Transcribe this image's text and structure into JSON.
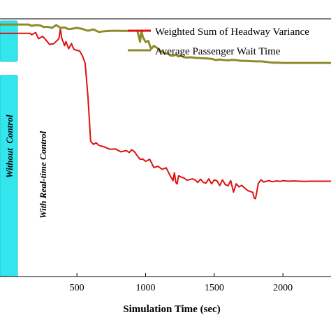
{
  "chart_data": {
    "type": "line",
    "xlabel": "Simulation Time (sec)",
    "ylabel": "",
    "xlim": [
      -60,
      2350
    ],
    "ylim": [
      0,
      100
    ],
    "x_ticks": [
      500,
      1000,
      1500,
      2000
    ],
    "grid": false,
    "legend_position": "top-right",
    "annotations": {
      "without_control": "Without  Control",
      "with_control": "With Real-time Control"
    },
    "colors": {
      "red": "#dd1111",
      "olive": "#8c8c2a",
      "cyan_box": "#33e6ee",
      "cyan_box_border": "#22c4cc"
    },
    "series": [
      {
        "name": "Weighted Sum of Headway Variance",
        "color": "#dd1111",
        "x": [
          -60,
          160,
          170,
          200,
          220,
          250,
          270,
          300,
          330,
          360,
          370,
          380,
          390,
          400,
          410,
          420,
          440,
          460,
          470,
          480,
          500,
          520,
          540,
          560,
          580,
          600,
          620,
          640,
          660,
          700,
          740,
          780,
          820,
          860,
          880,
          900,
          920,
          940,
          960,
          980,
          1000,
          1030,
          1060,
          1090,
          1120,
          1150,
          1180,
          1200,
          1210,
          1220,
          1230,
          1240,
          1260,
          1280,
          1300,
          1320,
          1340,
          1360,
          1380,
          1400,
          1420,
          1440,
          1460,
          1480,
          1500,
          1520,
          1540,
          1560,
          1580,
          1600,
          1620,
          1640,
          1660,
          1680,
          1700,
          1720,
          1740,
          1760,
          1780,
          1790,
          1800,
          1810,
          1820,
          1840,
          1860,
          1880,
          1900,
          1920,
          1940,
          1960,
          1980,
          2000,
          2040,
          2080,
          2120,
          2160,
          2200,
          2240,
          2280,
          2350
        ],
        "values": [
          94.4,
          94.4,
          93.8,
          94.7,
          92.3,
          93.2,
          92.1,
          90.1,
          90.3,
          91.8,
          92.6,
          96.1,
          92.4,
          91.0,
          89.6,
          91.2,
          88.4,
          90.4,
          89.1,
          88.1,
          87.8,
          87.5,
          85.7,
          82.8,
          70.0,
          52.5,
          51.3,
          51.9,
          50.9,
          50.3,
          49.4,
          49.5,
          48.4,
          48.9,
          48.1,
          49.2,
          48.4,
          46.8,
          45.5,
          45.6,
          44.7,
          45.5,
          42.3,
          42.8,
          41.6,
          42.2,
          39.0,
          37.2,
          40.3,
          36.5,
          35.9,
          39.1,
          38.6,
          38.2,
          37.4,
          37.6,
          37.9,
          37.5,
          36.5,
          37.8,
          36.5,
          36.3,
          37.9,
          36.0,
          37.5,
          37.1,
          35.3,
          37.5,
          35.7,
          35.2,
          37.2,
          32.8,
          36.0,
          34.8,
          35.4,
          34.4,
          33.5,
          33.0,
          32.7,
          30.5,
          30.2,
          32.9,
          36.1,
          37.5,
          36.7,
          37.0,
          37.2,
          36.8,
          37.0,
          37.1,
          36.9,
          37.2,
          37.0,
          37.1,
          37.0,
          36.9,
          37.0,
          37.0,
          37.0,
          37.0
        ]
      },
      {
        "name": "Average Passenger Wait Time",
        "color": "#8c8c2a",
        "x": [
          -60,
          150,
          170,
          200,
          230,
          260,
          290,
          320,
          350,
          380,
          410,
          440,
          470,
          500,
          540,
          580,
          620,
          660,
          700,
          740,
          780,
          820,
          860,
          900,
          940,
          960,
          970,
          980,
          1000,
          1020,
          1040,
          1060,
          1080,
          1100,
          1120,
          1140,
          1160,
          1180,
          1200,
          1220,
          1240,
          1260,
          1280,
          1300,
          1330,
          1360,
          1390,
          1420,
          1450,
          1480,
          1510,
          1540,
          1570,
          1600,
          1630,
          1660,
          1690,
          1720,
          1760,
          1800,
          1840,
          1880,
          1920,
          1960,
          2000,
          2040,
          2080,
          2120,
          2160,
          2200,
          2240,
          2280,
          2350
        ],
        "values": [
          97.8,
          97.8,
          97.3,
          97.6,
          97.5,
          96.8,
          96.9,
          96.5,
          97.6,
          96.5,
          96.7,
          96.0,
          96.2,
          96.5,
          96.1,
          95.4,
          95.9,
          94.9,
          95.2,
          95.3,
          95.4,
          95.3,
          95.3,
          95.4,
          95.4,
          91.1,
          95.4,
          93.0,
          91.0,
          91.4,
          88.3,
          89.5,
          88.9,
          87.8,
          87.3,
          86.4,
          86.6,
          85.8,
          85.7,
          86.1,
          85.4,
          85.7,
          85.1,
          85.0,
          85.1,
          84.9,
          84.8,
          84.7,
          84.6,
          84.5,
          84.0,
          84.2,
          84.0,
          83.9,
          84.1,
          84.0,
          83.7,
          83.7,
          83.6,
          83.5,
          83.5,
          83.3,
          83.0,
          83.0,
          82.9,
          82.9,
          82.9,
          82.9,
          82.9,
          82.9,
          82.9,
          82.9,
          82.9
        ]
      }
    ]
  }
}
